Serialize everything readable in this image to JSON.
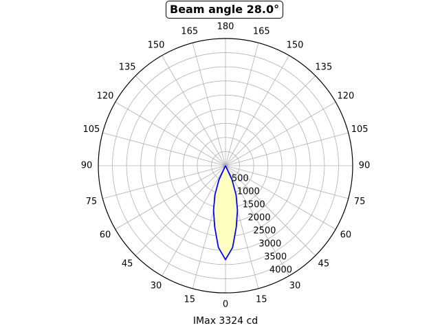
{
  "chart_data": {
    "type": "polar-line",
    "title": "Beam angle 28.0°",
    "xlabel": "IMax 3324 cd",
    "angle_tick_labels": [
      {
        "angle": 0,
        "label": "0"
      },
      {
        "angle": 15,
        "label": "15"
      },
      {
        "angle": 30,
        "label": "30"
      },
      {
        "angle": 45,
        "label": "45"
      },
      {
        "angle": 60,
        "label": "60"
      },
      {
        "angle": 75,
        "label": "75"
      },
      {
        "angle": 90,
        "label": "90"
      },
      {
        "angle": 105,
        "label": "105"
      },
      {
        "angle": 120,
        "label": "120"
      },
      {
        "angle": 135,
        "label": "135"
      },
      {
        "angle": 150,
        "label": "150"
      },
      {
        "angle": 165,
        "label": "165"
      },
      {
        "angle": 180,
        "label": "180"
      },
      {
        "angle": 195,
        "label": "165"
      },
      {
        "angle": 210,
        "label": "150"
      },
      {
        "angle": 225,
        "label": "135"
      },
      {
        "angle": 240,
        "label": "120"
      },
      {
        "angle": 255,
        "label": "105"
      },
      {
        "angle": 270,
        "label": "90"
      },
      {
        "angle": 285,
        "label": "75"
      },
      {
        "angle": 300,
        "label": "60"
      },
      {
        "angle": 315,
        "label": "45"
      },
      {
        "angle": 330,
        "label": "30"
      },
      {
        "angle": 345,
        "label": "15"
      }
    ],
    "radial_ticks": [
      500,
      1000,
      1500,
      2000,
      2500,
      3000,
      3500,
      4000
    ],
    "rlim": [
      0,
      4500
    ],
    "grid": true,
    "series": [
      {
        "angles_deg": [
          -30,
          -25,
          -20,
          -15,
          -10,
          -5,
          0,
          5,
          10,
          15,
          20,
          25,
          30
        ],
        "values": [
          0,
          545,
          1095,
          1635,
          2200,
          2900,
          3324,
          2900,
          2200,
          1635,
          1095,
          545,
          0
        ],
        "line_color": "#0000ff",
        "fill_color": "#ffffc0"
      }
    ]
  }
}
